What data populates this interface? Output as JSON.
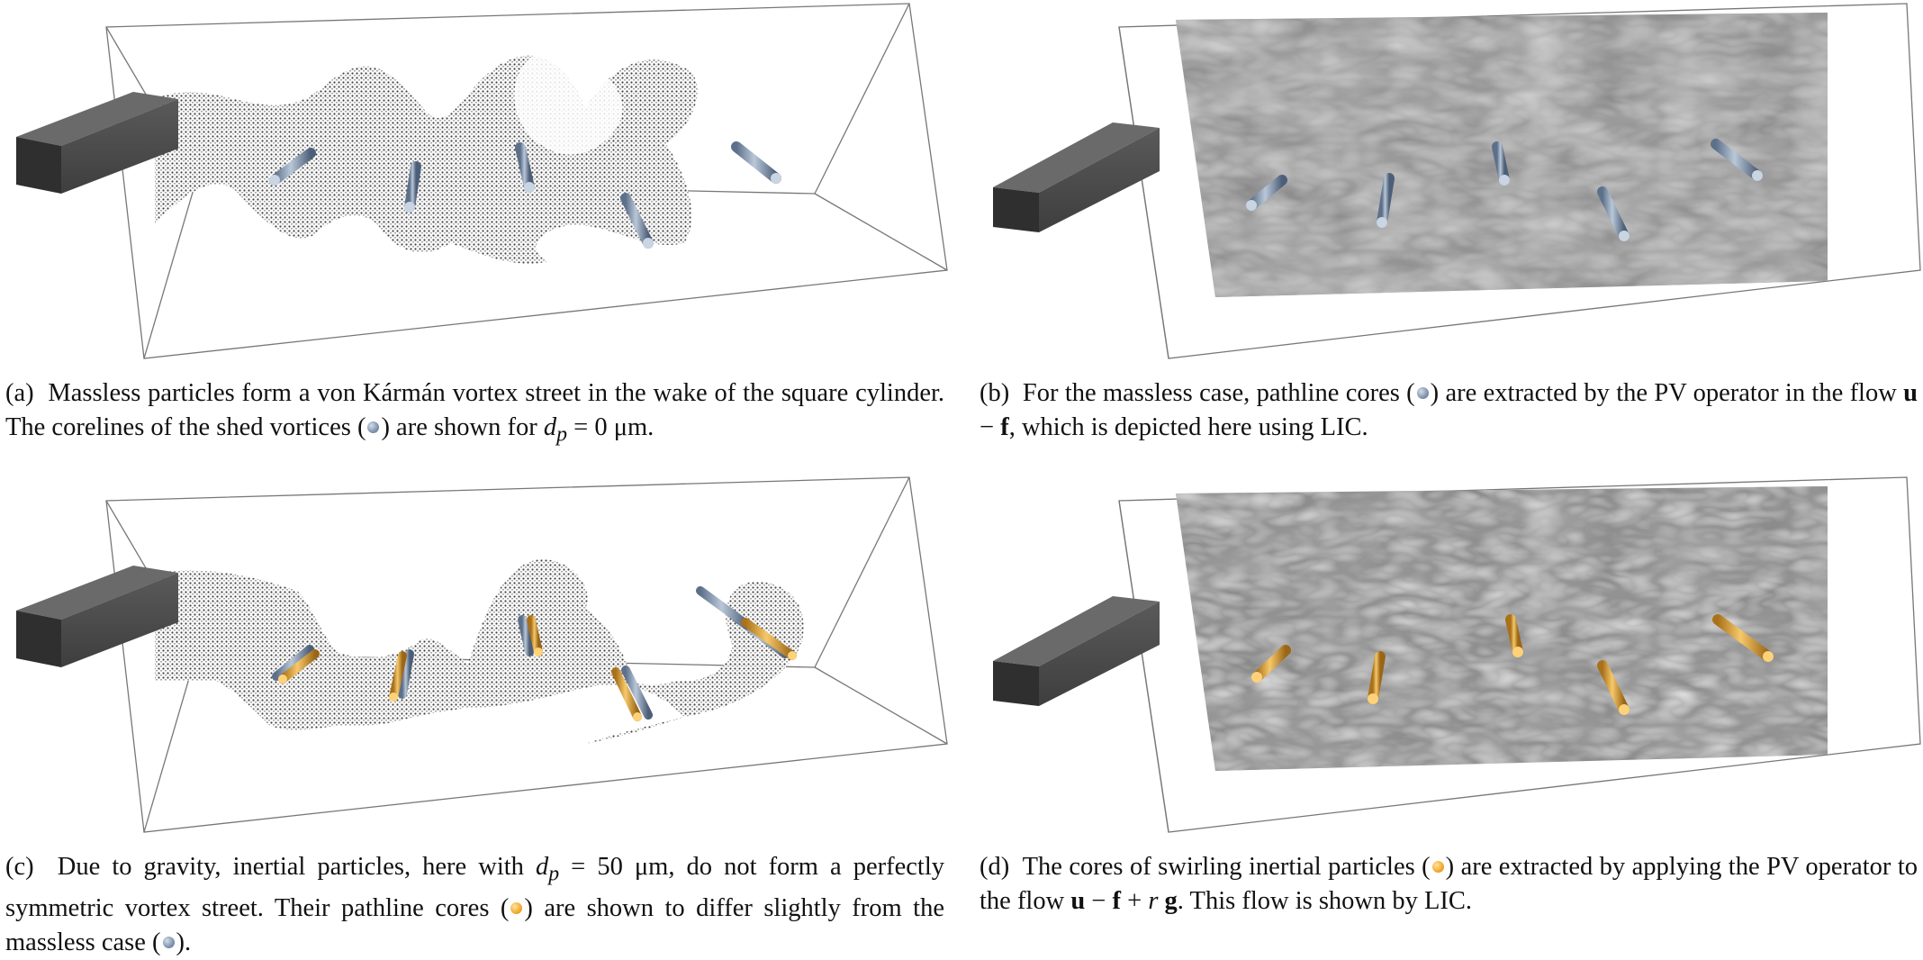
{
  "captions": {
    "a": {
      "tag": "(a)",
      "p1": "Massless particles form a von Kármán vortex street in the wake of the square cylinder. The corelines of the shed vortices (",
      "p2": ") are shown for ",
      "math": "d",
      "sub": "p",
      "p3": " = 0 μm."
    },
    "b": {
      "tag": "(b)",
      "p1": "For the massless case, pathline cores (",
      "p2": ") are extracted by the PV operator in the flow ",
      "bold1": "u",
      "minus": " − ",
      "bold2": "f",
      "p3": ", which is depicted here using LIC."
    },
    "c": {
      "tag": "(c)",
      "p1": "Due to gravity, inertial particles, here with ",
      "math": "d",
      "sub": "p",
      "p2": " = 50 μm, do not form a perfectly symmetric vortex street. Their pathline cores (",
      "p3": ") are shown to differ slightly from the massless case (",
      "p4": ")."
    },
    "d": {
      "tag": "(d)",
      "p1": "The cores of swirling inertial particles (",
      "p2": ") are extracted by applying the PV operator to the flow ",
      "bold1": "u",
      "minus": " − ",
      "bold2": "f",
      "plus": " + ",
      "r": "r",
      "bold3": "g",
      "p3": ". This flow is shown by LIC."
    }
  },
  "colors": {
    "blue_core": "#7f93ac",
    "gold_core": "#e8a42c",
    "cylinder": "#3a3a3a"
  }
}
